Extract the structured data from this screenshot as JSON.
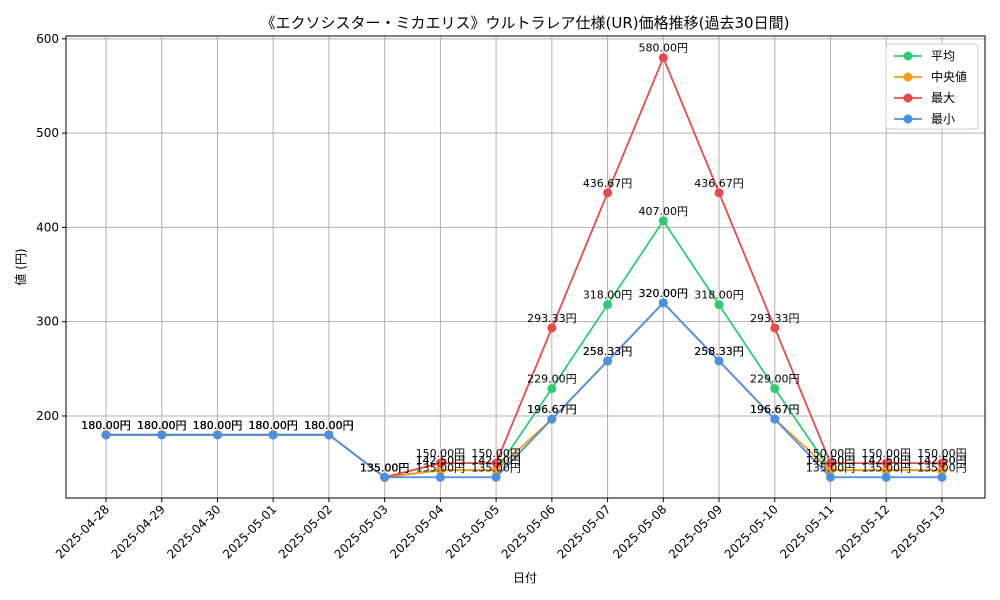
{
  "chart_data": {
    "type": "line",
    "title": "《エクソシスター・ミカエリス》ウルトラレア仕様(UR)価格推移(過去30日間)",
    "xlabel": "日付",
    "ylabel": "値 (円)",
    "x": [
      "2025-04-28",
      "2025-04-29",
      "2025-04-30",
      "2025-05-01",
      "2025-05-02",
      "2025-05-03",
      "2025-05-04",
      "2025-05-05",
      "2025-05-06",
      "2025-05-07",
      "2025-05-08",
      "2025-05-09",
      "2025-05-10",
      "2025-05-11",
      "2025-05-12",
      "2025-05-13"
    ],
    "ylim": [
      113,
      603
    ],
    "yticks": [
      200,
      300,
      400,
      500,
      600
    ],
    "grid": true,
    "legend_position": "top-right",
    "label_suffix": "円",
    "series": [
      {
        "name": "平均",
        "color": "#2ecc71",
        "values": [
          180,
          180,
          180,
          180,
          180,
          135,
          142.5,
          142.5,
          229,
          318,
          407,
          318,
          229,
          142.5,
          142.5,
          142.5
        ]
      },
      {
        "name": "中央値",
        "color": "#f39c12",
        "values": [
          180,
          180,
          180,
          180,
          180,
          135,
          142.5,
          142.5,
          196.67,
          258.33,
          320,
          258.33,
          196.67,
          142.5,
          142.5,
          142.5
        ]
      },
      {
        "name": "最大",
        "color": "#e84a4a",
        "values": [
          180,
          180,
          180,
          180,
          180,
          135,
          150,
          150,
          293.33,
          436.67,
          580,
          436.67,
          293.33,
          150,
          150,
          150
        ]
      },
      {
        "name": "最小",
        "color": "#4a90e2",
        "values": [
          180,
          180,
          180,
          180,
          180,
          135,
          135,
          135,
          196.67,
          258.33,
          320,
          258.33,
          196.67,
          135,
          135,
          135
        ]
      }
    ]
  }
}
